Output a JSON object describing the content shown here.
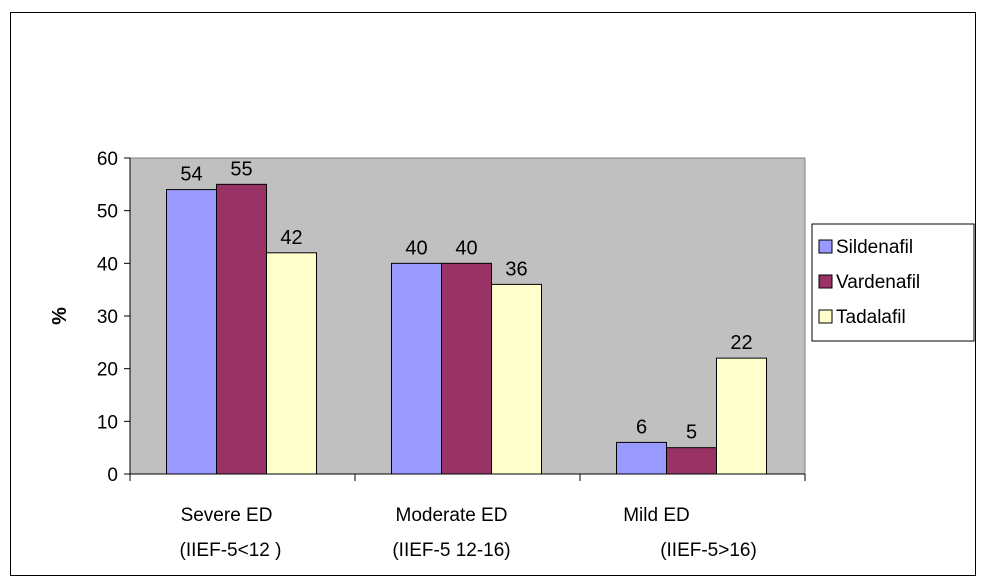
{
  "chart_data": {
    "type": "bar",
    "categories": [
      [
        "Severe ED",
        "(IIEF-5<12 )"
      ],
      [
        "Moderate ED",
        "(IIEF-5 12-16)"
      ],
      [
        "Mild ED",
        "(IIEF-5>16)"
      ]
    ],
    "series": [
      {
        "name": "Sildenafil",
        "values": [
          54,
          40,
          6
        ],
        "color": "#9999FF"
      },
      {
        "name": "Vardenafil",
        "values": [
          55,
          40,
          5
        ],
        "color": "#993366"
      },
      {
        "name": "Tadalafil",
        "values": [
          42,
          36,
          22
        ],
        "color": "#FFFFCC"
      }
    ],
    "ylabel": "%",
    "ylim": [
      0,
      60
    ],
    "yticks": [
      0,
      10,
      20,
      30,
      40,
      50,
      60
    ],
    "plot_background": "#C0C0C0",
    "grid": false,
    "legend_position": "right"
  }
}
